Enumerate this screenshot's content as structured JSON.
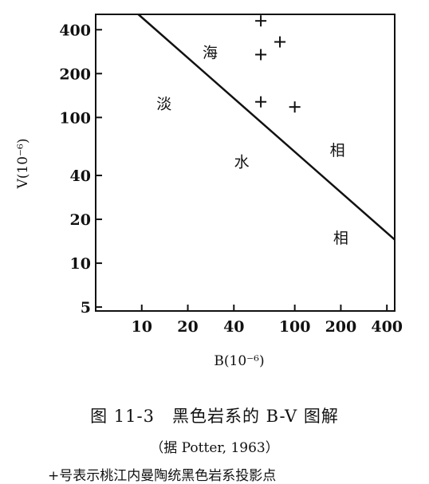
{
  "chart_data": {
    "type": "scatter",
    "xlabel": "B(10⁻⁶)",
    "ylabel": "V(10⁻⁶)",
    "xscale": "log",
    "yscale": "log",
    "xlim": [
      5,
      450
    ],
    "ylim": [
      4.7,
      510
    ],
    "x_ticks": [
      10,
      20,
      40,
      100,
      200,
      400
    ],
    "x_tick_labels": [
      "10",
      "20",
      "40",
      "100",
      "200",
      "400"
    ],
    "y_ticks": [
      5,
      10,
      20,
      40,
      100,
      200,
      400
    ],
    "y_tick_labels": [
      "5",
      "10",
      "20",
      "40",
      "100",
      "200",
      "400"
    ],
    "marker": "+",
    "points": [
      {
        "x": 60,
        "y": 460
      },
      {
        "x": 80,
        "y": 330
      },
      {
        "x": 60,
        "y": 270
      },
      {
        "x": 60,
        "y": 128
      },
      {
        "x": 100,
        "y": 118
      }
    ],
    "boundary_line": [
      {
        "x": 9.5,
        "y": 510
      },
      {
        "x": 450,
        "y": 14.5
      }
    ],
    "region_labels": [
      {
        "text": "淡",
        "x": 14,
        "y": 125
      },
      {
        "text": "海",
        "x": 28,
        "y": 280
      },
      {
        "text": "水",
        "x": 45,
        "y": 50
      },
      {
        "text": "相",
        "x": 190,
        "y": 60
      },
      {
        "text": "相",
        "x": 200,
        "y": 15
      }
    ],
    "grid": false
  },
  "caption": {
    "title": "图 11-3　黑色岩系的 B-V 图解",
    "source": "（据 Potter, 1963）",
    "note": "+号表示桃江内曼陶统黑色岩系投影点"
  }
}
